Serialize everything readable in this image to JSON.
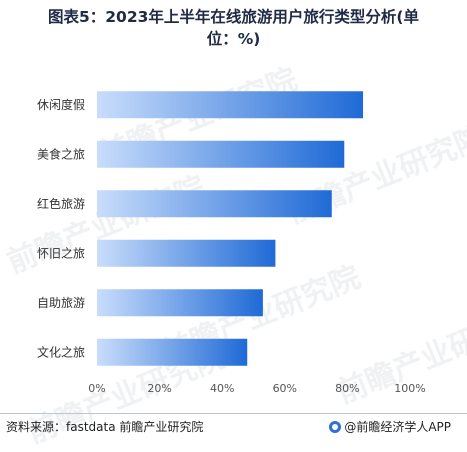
{
  "title": "图表5：2023年上半年在线旅游用户旅行类型分析(单位：%)",
  "watermark_text": "前瞻产业研究院",
  "source": "资料来源：fastdata 前瞻产业研究院",
  "brand": "@前瞻经济学人APP",
  "colors": {
    "bar_start": "#c9ddfb",
    "bar_end": "#1f6ad6"
  },
  "chart_data": {
    "type": "bar",
    "orientation": "horizontal",
    "categories": [
      "休闲度假",
      "美食之旅",
      "红色旅游",
      "怀旧之旅",
      "自助旅游",
      "文化之旅"
    ],
    "values": [
      85,
      79,
      75,
      57,
      53,
      48
    ],
    "xlim": [
      0,
      100
    ],
    "xticks": [
      0,
      20,
      40,
      60,
      80,
      100
    ],
    "xtick_labels": [
      "0%",
      "20%",
      "40%",
      "60%",
      "80%",
      "100%"
    ],
    "grid": false,
    "title": "图表5：2023年上半年在线旅游用户旅行类型分析(单位：%)"
  }
}
